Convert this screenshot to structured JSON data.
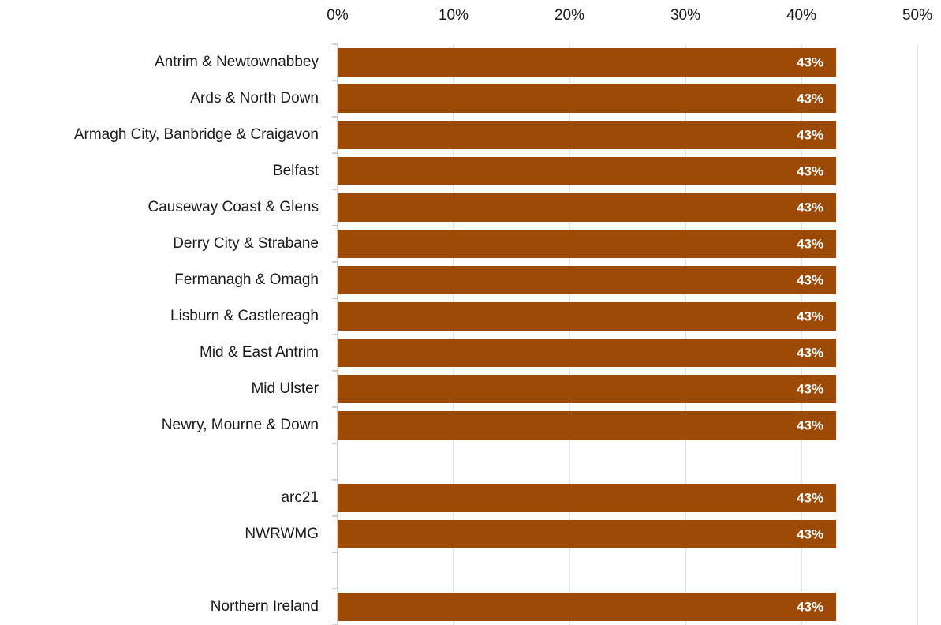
{
  "chart_data": {
    "type": "bar",
    "orientation": "horizontal",
    "categories": [
      "Antrim & Newtownabbey",
      "Ards & North Down",
      "Armagh City, Banbridge & Craigavon",
      "Belfast",
      "Causeway Coast & Glens",
      "Derry City & Strabane",
      "Fermanagh & Omagh",
      "Lisburn & Castlereagh",
      "Mid & East Antrim",
      "Mid Ulster",
      "Newry, Mourne & Down",
      null,
      "arc21",
      "NWRWMG",
      null,
      "Northern Ireland"
    ],
    "values": [
      43,
      43,
      43,
      43,
      43,
      43,
      43,
      43,
      43,
      43,
      43,
      null,
      43,
      43,
      null,
      43
    ],
    "value_labels": [
      "43%",
      "43%",
      "43%",
      "43%",
      "43%",
      "43%",
      "43%",
      "43%",
      "43%",
      "43%",
      "43%",
      null,
      "43%",
      "43%",
      null,
      "43%"
    ],
    "color": "#9c4a06",
    "xlim": [
      0,
      50
    ],
    "xticks": [
      {
        "value": 0,
        "label": "0%"
      },
      {
        "value": 10,
        "label": "10%"
      },
      {
        "value": 20,
        "label": "20%"
      },
      {
        "value": 30,
        "label": "30%"
      },
      {
        "value": 40,
        "label": "40%"
      },
      {
        "value": 50,
        "label": "50%"
      }
    ],
    "grid": true
  }
}
